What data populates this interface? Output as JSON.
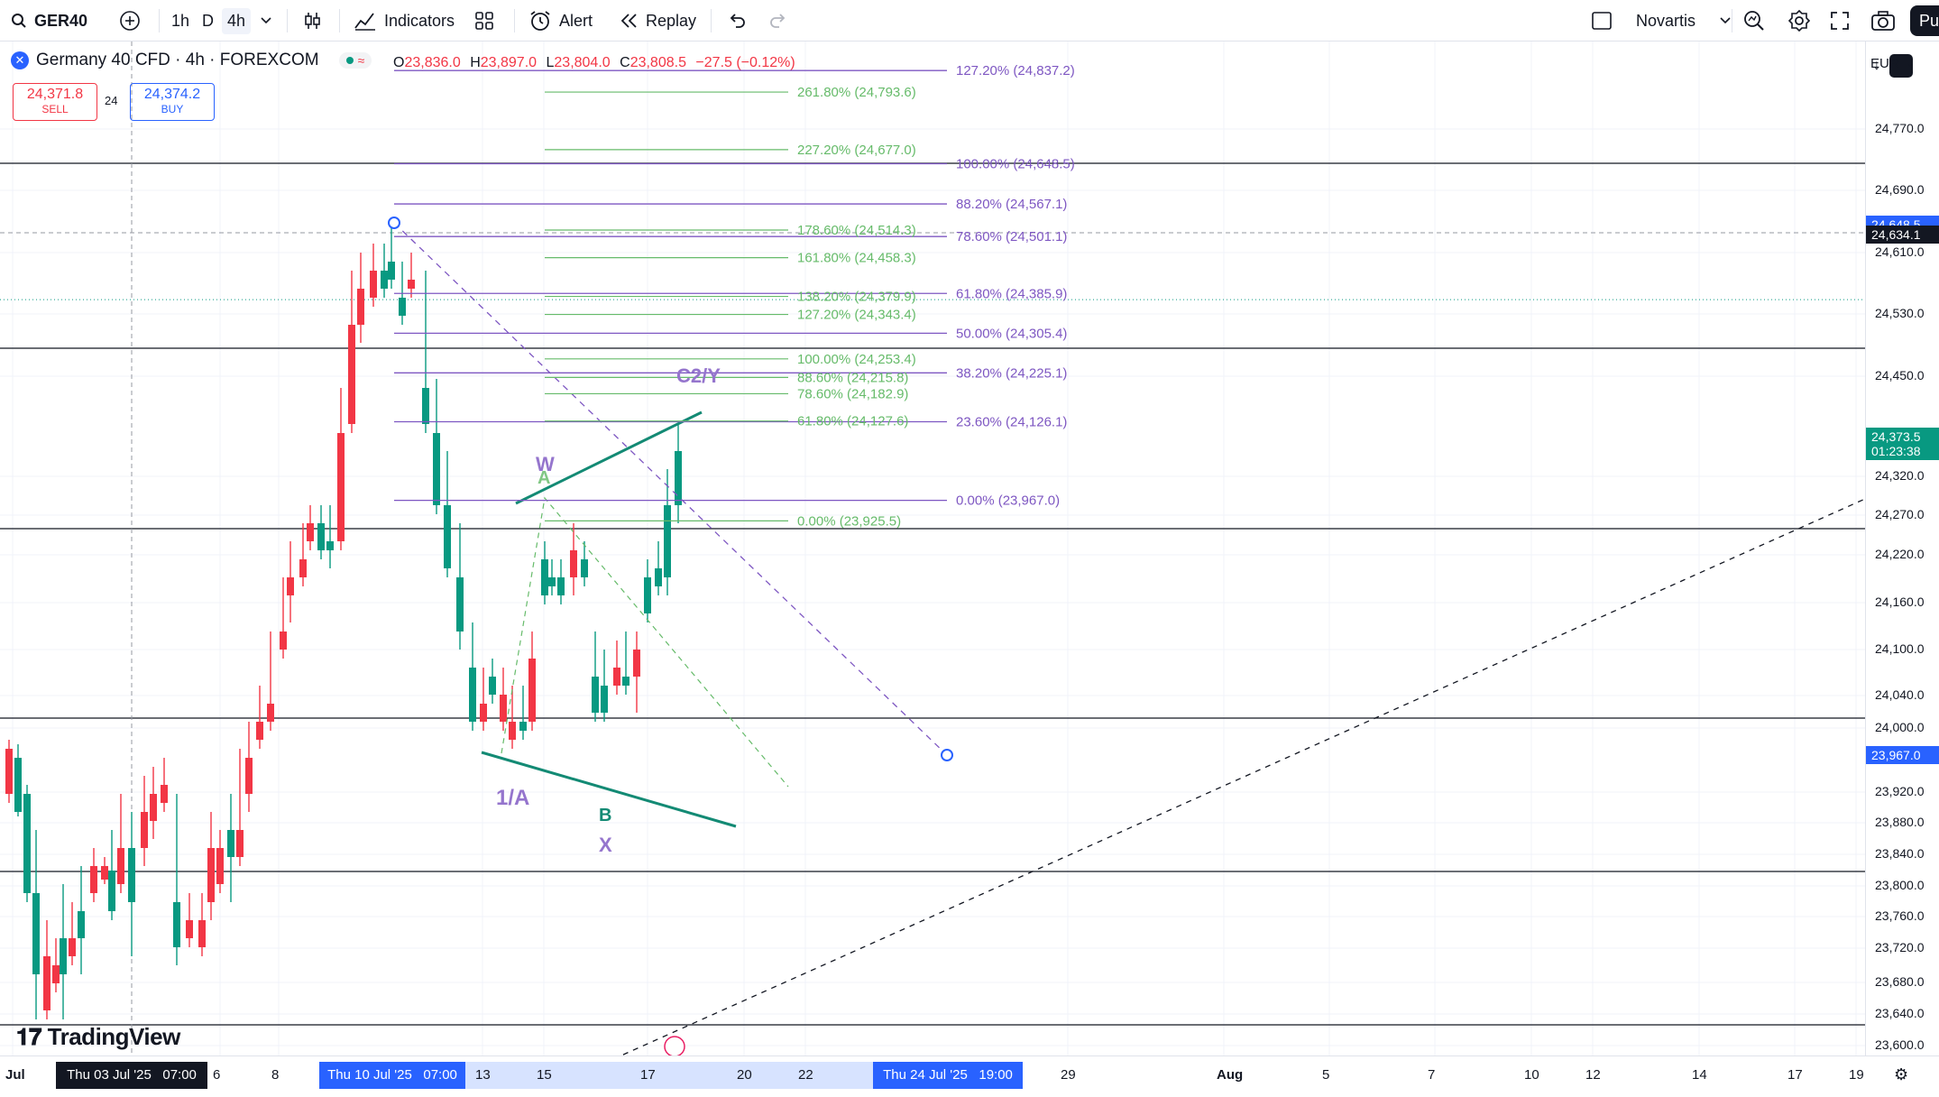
{
  "toolbar": {
    "symbol": "GER40",
    "timeframes": [
      "1h",
      "D",
      "4h"
    ],
    "active_timeframe": "4h",
    "indicators_label": "Indicators",
    "alert_label": "Alert",
    "replay_label": "Replay",
    "watch_symbol": "Novartis",
    "publish_short": "Pu"
  },
  "legend": {
    "title": "Germany 40 CFD · 4h · FOREXCOM",
    "ohlc": {
      "o_label": "O",
      "o": "23,836.0",
      "h_label": "H",
      "h": "23,897.0",
      "l_label": "L",
      "l": "23,804.0",
      "c_label": "C",
      "c": "23,808.5",
      "change": "−27.5 (−0.12%)"
    },
    "sell_price": "24,371.8",
    "sell_label": "SELL",
    "spread": "24",
    "buy_price": "24,374.2",
    "buy_label": "BUY"
  },
  "currency": "EUR",
  "price_axis": {
    "ticks": [
      "24,770.0",
      "24,690.0",
      "24,610.0",
      "24,530.0",
      "24,450.0",
      "24,320.0",
      "24,270.0",
      "24,220.0",
      "24,160.0",
      "24,100.0",
      "24,040.0",
      "24,000.0",
      "23,920.0",
      "23,880.0",
      "23,840.0",
      "23,800.0",
      "23,760.0",
      "23,720.0",
      "23,680.0",
      "23,640.0",
      "23,600.0"
    ],
    "crosshair_price": "24,634.1",
    "level_price": "24,648.5",
    "last_price": "24,373.5",
    "countdown": "01:23:38",
    "bottom_price": "23,967.0"
  },
  "time_axis": {
    "ticks": [
      "Jul",
      "6",
      "8",
      "13",
      "15",
      "17",
      "20",
      "22",
      "29",
      "Aug",
      "5",
      "7",
      "10",
      "12",
      "14",
      "17",
      "19"
    ],
    "cursor_label": "Thu 03 Jul '25   07:00",
    "range_start": "Thu 10 Jul '25   07:00",
    "range_end": "Thu 24 Jul '25   19:00"
  },
  "fib_purple": [
    {
      "label": "127.20% (24,837.2)",
      "price": 24837.2
    },
    {
      "label": "100.00% (24,648.5)",
      "price": 24648.5
    },
    {
      "label": "88.20% (24,567.1)",
      "price": 24567.1
    },
    {
      "label": "78.60% (24,501.1)",
      "price": 24501.1
    },
    {
      "label": "61.80% (24,385.9)",
      "price": 24385.9
    },
    {
      "label": "50.00% (24,305.4)",
      "price": 24305.4
    },
    {
      "label": "38.20% (24,225.1)",
      "price": 24225.1
    },
    {
      "label": "23.60% (24,126.1)",
      "price": 24126.1
    },
    {
      "label": "0.00% (23,967.0)",
      "price": 23967.0
    }
  ],
  "fib_green": [
    {
      "label": "261.80% (24,793.6)",
      "price": 24793.6
    },
    {
      "label": "227.20% (24,677.0)",
      "price": 24677.0
    },
    {
      "label": "178.60% (24,514.3)",
      "price": 24514.3
    },
    {
      "label": "161.80% (24,458.3)",
      "price": 24458.3
    },
    {
      "label": "138.20% (24,379.9)",
      "price": 24379.9
    },
    {
      "label": "127.20% (24,343.4)",
      "price": 24343.4
    },
    {
      "label": "100.00% (24,253.4)",
      "price": 24253.4
    },
    {
      "label": "88.60% (24,215.8)",
      "price": 24215.8
    },
    {
      "label": "78.60% (24,182.9)",
      "price": 24182.9
    },
    {
      "label": "61.80% (24,127.6)",
      "price": 24127.6
    },
    {
      "label": "0.00% (23,925.5)",
      "price": 23925.5
    }
  ],
  "wave_labels": {
    "w": "W",
    "a": "A",
    "c2y": "C2/Y",
    "one_a": "1/A",
    "b": "B",
    "x": "X"
  },
  "brand": "TradingView",
  "colors": {
    "up": "#089981",
    "down": "#f23645",
    "fib_purple": "#7e57c2",
    "fib_green": "#66bb6a",
    "accent": "#2962ff"
  }
}
